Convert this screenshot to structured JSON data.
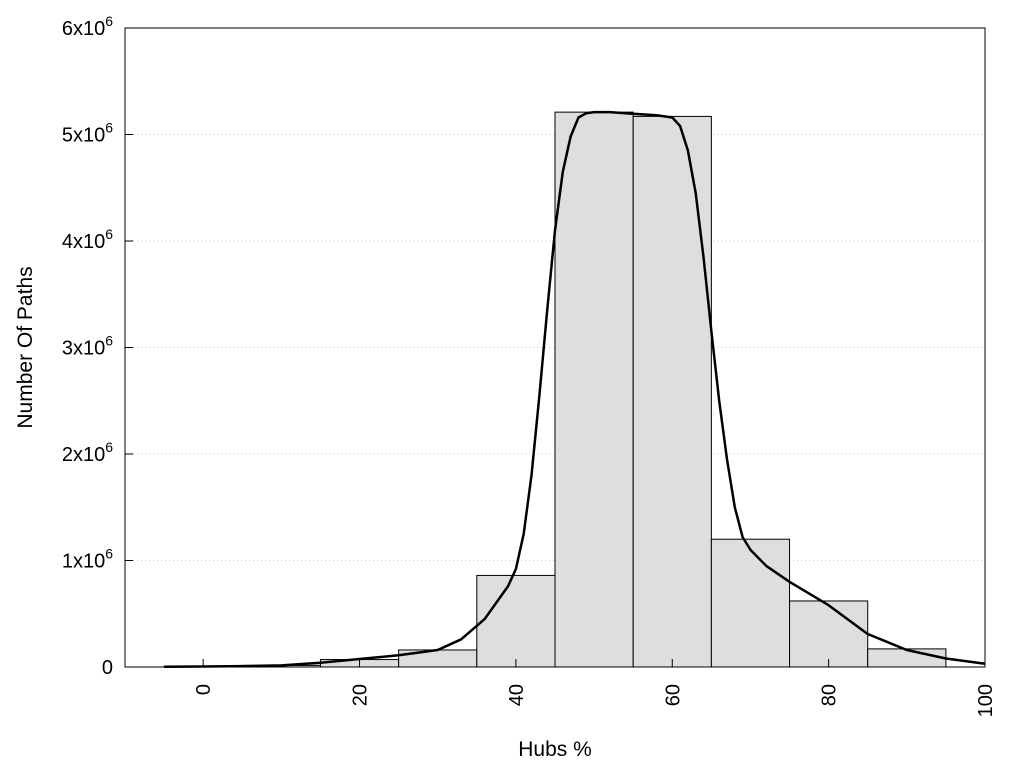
{
  "chart_data": {
    "type": "bar",
    "title": "",
    "xlabel": "Hubs %",
    "ylabel": "Number Of Paths",
    "xlim": [
      -10,
      100
    ],
    "ylim": [
      0,
      6000000
    ],
    "x_ticks": [
      0,
      20,
      40,
      60,
      80,
      100
    ],
    "y_ticks": [
      0,
      1000000,
      2000000,
      3000000,
      4000000,
      5000000,
      6000000
    ],
    "y_tick_labels": [
      {
        "base": "0",
        "exp": ""
      },
      {
        "base": "1x10",
        "exp": "6"
      },
      {
        "base": "2x10",
        "exp": "6"
      },
      {
        "base": "3x10",
        "exp": "6"
      },
      {
        "base": "4x10",
        "exp": "6"
      },
      {
        "base": "5x10",
        "exp": "6"
      },
      {
        "base": "6x10",
        "exp": "6"
      }
    ],
    "grid": "horizontal dotted",
    "bin_width": 10,
    "bins": [
      {
        "center": 0,
        "value": 5000
      },
      {
        "center": 10,
        "value": 15000
      },
      {
        "center": 20,
        "value": 70000
      },
      {
        "center": 30,
        "value": 160000
      },
      {
        "center": 40,
        "value": 860000
      },
      {
        "center": 50,
        "value": 5210000
      },
      {
        "center": 60,
        "value": 5170000
      },
      {
        "center": 70,
        "value": 1200000
      },
      {
        "center": 80,
        "value": 620000
      },
      {
        "center": 90,
        "value": 170000
      }
    ],
    "curve": {
      "x": [
        -5,
        0,
        5,
        10,
        15,
        20,
        25,
        30,
        33,
        36,
        39,
        40,
        41,
        42,
        43,
        44,
        45,
        46,
        47,
        48,
        49,
        50,
        52,
        54,
        56,
        58,
        60,
        61,
        62,
        63,
        64,
        65,
        66,
        67,
        68,
        69,
        70,
        72,
        75,
        80,
        85,
        90,
        95,
        100
      ],
      "y": [
        3000,
        5000,
        8000,
        15000,
        40000,
        75000,
        110000,
        160000,
        260000,
        450000,
        760000,
        920000,
        1250000,
        1800000,
        2550000,
        3350000,
        4100000,
        4650000,
        4980000,
        5160000,
        5200000,
        5210000,
        5210000,
        5200000,
        5190000,
        5180000,
        5160000,
        5080000,
        4850000,
        4450000,
        3850000,
        3150000,
        2500000,
        1950000,
        1500000,
        1220000,
        1100000,
        950000,
        800000,
        580000,
        310000,
        160000,
        80000,
        30000
      ],
      "color": "#000000"
    },
    "bar_fill": "#dedede",
    "bar_stroke": "#000000"
  }
}
